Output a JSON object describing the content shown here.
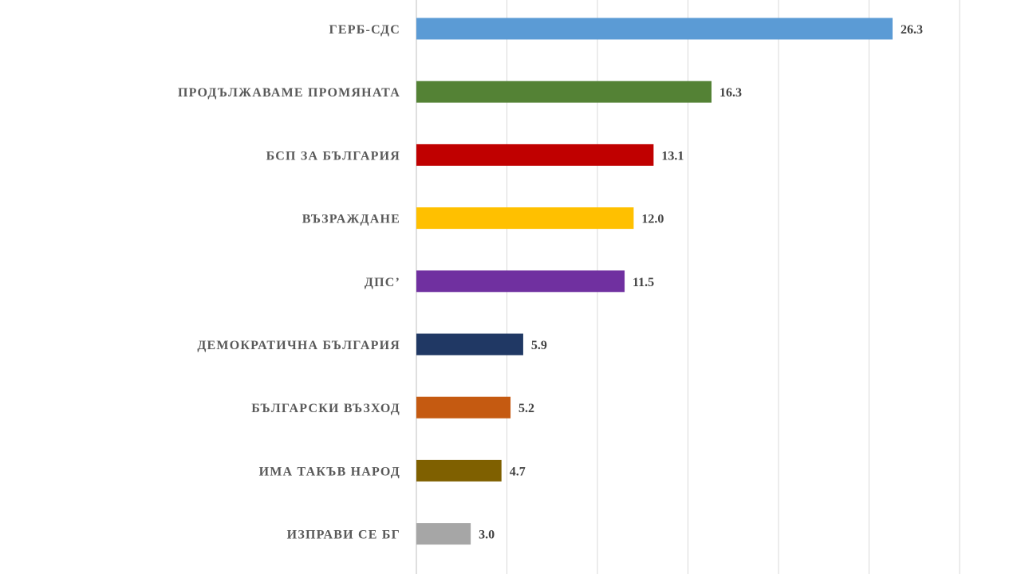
{
  "chart_data": {
    "type": "bar",
    "orientation": "horizontal",
    "title": "",
    "xlabel": "",
    "ylabel": "",
    "xlim": [
      0,
      30
    ],
    "gridlines": true,
    "categories": [
      "ГЕРБ-СДС",
      "ПРОДЪЛЖАВАМЕ ПРОМЯНАТА",
      "БСП ЗА БЪЛГАРИЯ",
      "ВЪЗРАЖДАНЕ",
      "ДПС’",
      "ДЕМОКРАТИЧНА БЪЛГАРИЯ",
      "БЪЛГАРСКИ ВЪЗХОД",
      "ИМА ТАКЪВ НАРОД",
      "ИЗПРАВИ СЕ БГ"
    ],
    "values": [
      26.3,
      16.3,
      13.1,
      12.0,
      11.5,
      5.9,
      5.2,
      4.7,
      3.0
    ],
    "value_labels": [
      "26.3",
      "16.3",
      "13.1",
      "12.0",
      "11.5",
      "5.9",
      "5.2",
      "4.7",
      "3.0"
    ],
    "colors": [
      "#5b9bd5",
      "#548235",
      "#c00000",
      "#ffc000",
      "#7030a0",
      "#203864",
      "#c55a11",
      "#7f6000",
      "#a6a6a6"
    ]
  }
}
